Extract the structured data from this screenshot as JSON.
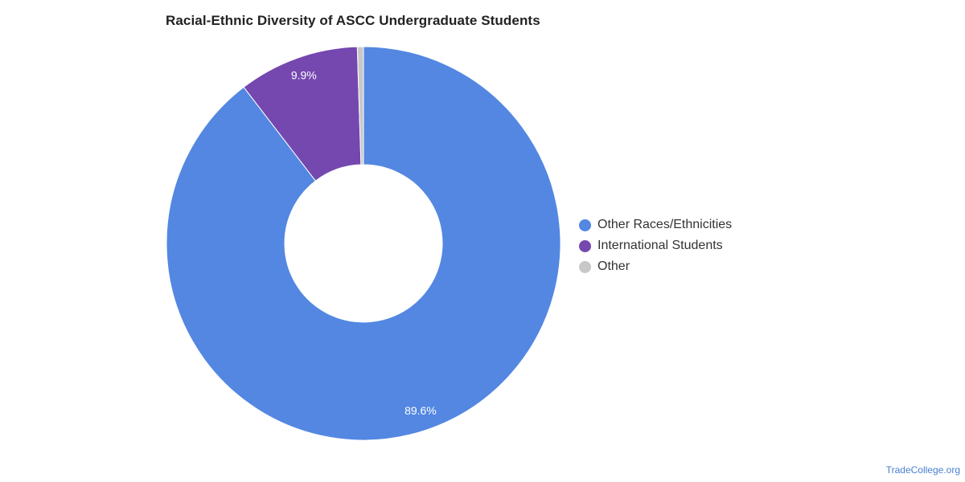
{
  "chart_data": {
    "type": "pie",
    "variant": "donut",
    "title": "Racial-Ethnic Diversity of ASCC Undergraduate Students",
    "categories": [
      "Other Races/Ethnicities",
      "International Students",
      "Other"
    ],
    "values": [
      89.6,
      9.9,
      0.5
    ],
    "data_labels": [
      "89.6%",
      "9.9%",
      ""
    ],
    "colors": [
      "#5387e2",
      "#7548b0",
      "#c8c8c8"
    ],
    "legend_position": "right"
  },
  "source": "TradeCollege.org"
}
